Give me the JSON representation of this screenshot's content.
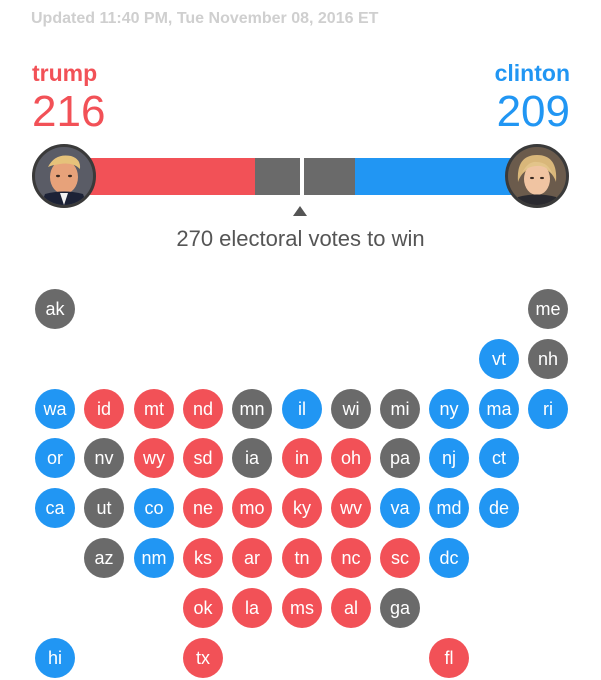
{
  "header": {
    "updated": "Updated 11:40 PM, Tue November 08, 2016 ET"
  },
  "colors": {
    "republican": "#f25157",
    "democrat": "#2196f3",
    "undecided": "#6a6a6a",
    "text_gray": "#555555"
  },
  "candidates": {
    "trump": {
      "name": "trump",
      "votes": "216",
      "color": "#f25157"
    },
    "clinton": {
      "name": "clinton",
      "votes": "209",
      "color": "#2196f3"
    }
  },
  "bar": {
    "total_votes": 538,
    "win_threshold": 270,
    "threshold_label": "270 electoral votes to win"
  },
  "states": [
    {
      "abbr": "ak",
      "status": "undecided",
      "row": 0,
      "col": 0
    },
    {
      "abbr": "me",
      "status": "undecided",
      "row": 0,
      "col": 10
    },
    {
      "abbr": "vt",
      "status": "democrat",
      "row": 1,
      "col": 9
    },
    {
      "abbr": "nh",
      "status": "undecided",
      "row": 1,
      "col": 10
    },
    {
      "abbr": "wa",
      "status": "democrat",
      "row": 2,
      "col": 0
    },
    {
      "abbr": "id",
      "status": "republican",
      "row": 2,
      "col": 1
    },
    {
      "abbr": "mt",
      "status": "republican",
      "row": 2,
      "col": 2
    },
    {
      "abbr": "nd",
      "status": "republican",
      "row": 2,
      "col": 3
    },
    {
      "abbr": "mn",
      "status": "undecided",
      "row": 2,
      "col": 4
    },
    {
      "abbr": "il",
      "status": "democrat",
      "row": 2,
      "col": 5
    },
    {
      "abbr": "wi",
      "status": "undecided",
      "row": 2,
      "col": 6
    },
    {
      "abbr": "mi",
      "status": "undecided",
      "row": 2,
      "col": 7
    },
    {
      "abbr": "ny",
      "status": "democrat",
      "row": 2,
      "col": 8
    },
    {
      "abbr": "ma",
      "status": "democrat",
      "row": 2,
      "col": 9
    },
    {
      "abbr": "ri",
      "status": "democrat",
      "row": 2,
      "col": 10
    },
    {
      "abbr": "or",
      "status": "democrat",
      "row": 3,
      "col": 0
    },
    {
      "abbr": "nv",
      "status": "undecided",
      "row": 3,
      "col": 1
    },
    {
      "abbr": "wy",
      "status": "republican",
      "row": 3,
      "col": 2
    },
    {
      "abbr": "sd",
      "status": "republican",
      "row": 3,
      "col": 3
    },
    {
      "abbr": "ia",
      "status": "undecided",
      "row": 3,
      "col": 4
    },
    {
      "abbr": "in",
      "status": "republican",
      "row": 3,
      "col": 5
    },
    {
      "abbr": "oh",
      "status": "republican",
      "row": 3,
      "col": 6
    },
    {
      "abbr": "pa",
      "status": "undecided",
      "row": 3,
      "col": 7
    },
    {
      "abbr": "nj",
      "status": "democrat",
      "row": 3,
      "col": 8
    },
    {
      "abbr": "ct",
      "status": "democrat",
      "row": 3,
      "col": 9
    },
    {
      "abbr": "ca",
      "status": "democrat",
      "row": 4,
      "col": 0
    },
    {
      "abbr": "ut",
      "status": "undecided",
      "row": 4,
      "col": 1
    },
    {
      "abbr": "co",
      "status": "democrat",
      "row": 4,
      "col": 2
    },
    {
      "abbr": "ne",
      "status": "republican",
      "row": 4,
      "col": 3
    },
    {
      "abbr": "mo",
      "status": "republican",
      "row": 4,
      "col": 4
    },
    {
      "abbr": "ky",
      "status": "republican",
      "row": 4,
      "col": 5
    },
    {
      "abbr": "wv",
      "status": "republican",
      "row": 4,
      "col": 6
    },
    {
      "abbr": "va",
      "status": "democrat",
      "row": 4,
      "col": 7
    },
    {
      "abbr": "md",
      "status": "democrat",
      "row": 4,
      "col": 8
    },
    {
      "abbr": "de",
      "status": "democrat",
      "row": 4,
      "col": 9
    },
    {
      "abbr": "az",
      "status": "undecided",
      "row": 5,
      "col": 1
    },
    {
      "abbr": "nm",
      "status": "democrat",
      "row": 5,
      "col": 2
    },
    {
      "abbr": "ks",
      "status": "republican",
      "row": 5,
      "col": 3
    },
    {
      "abbr": "ar",
      "status": "republican",
      "row": 5,
      "col": 4
    },
    {
      "abbr": "tn",
      "status": "republican",
      "row": 5,
      "col": 5
    },
    {
      "abbr": "nc",
      "status": "republican",
      "row": 5,
      "col": 6
    },
    {
      "abbr": "sc",
      "status": "republican",
      "row": 5,
      "col": 7
    },
    {
      "abbr": "dc",
      "status": "democrat",
      "row": 5,
      "col": 8
    },
    {
      "abbr": "ok",
      "status": "republican",
      "row": 6,
      "col": 3
    },
    {
      "abbr": "la",
      "status": "republican",
      "row": 6,
      "col": 4
    },
    {
      "abbr": "ms",
      "status": "republican",
      "row": 6,
      "col": 5
    },
    {
      "abbr": "al",
      "status": "republican",
      "row": 6,
      "col": 6
    },
    {
      "abbr": "ga",
      "status": "undecided",
      "row": 6,
      "col": 7
    },
    {
      "abbr": "hi",
      "status": "democrat",
      "row": 7,
      "col": 0
    },
    {
      "abbr": "tx",
      "status": "republican",
      "row": 7,
      "col": 3
    },
    {
      "abbr": "fl",
      "status": "republican",
      "row": 7,
      "col": 8
    }
  ]
}
